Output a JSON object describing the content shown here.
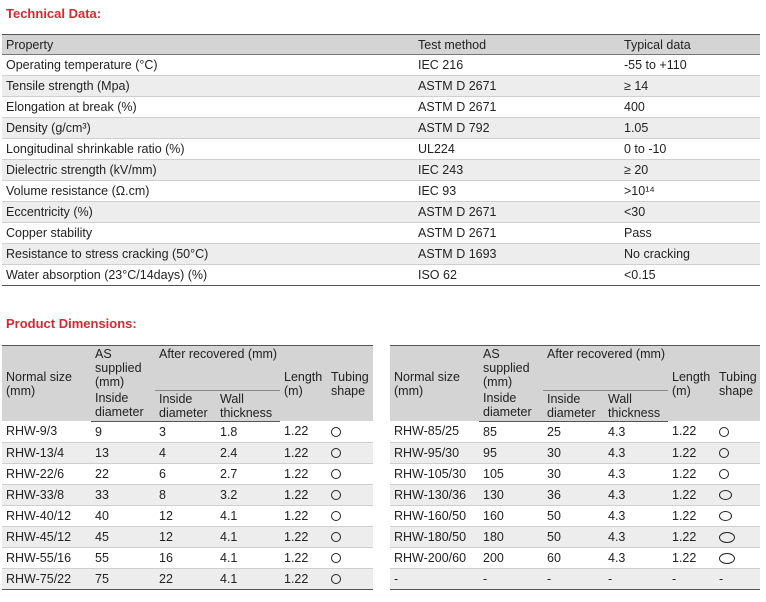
{
  "technical_title": "Technical Data:",
  "technical": {
    "headers": [
      "Property",
      "Test method",
      "Typical data"
    ],
    "rows": [
      [
        "Operating temperature (°C)",
        "IEC 216",
        "-55 to +110"
      ],
      [
        "Tensile strength (Mpa)",
        "ASTM D 2671",
        "≥ 14"
      ],
      [
        "Elongation at break (%)",
        "ASTM D 2671",
        "400"
      ],
      [
        "Density (g/cm³)",
        "ASTM D 792",
        "1.05"
      ],
      [
        "Longitudinal shrinkable ratio (%)",
        "UL224",
        "0 to -10"
      ],
      [
        "Dielectric strength (kV/mm)",
        "IEC 243",
        "≥ 20"
      ],
      [
        "Volume resistance (Ω.cm)",
        "IEC 93",
        ">10¹⁴"
      ],
      [
        "Eccentricity (%)",
        "ASTM D 2671",
        "<30"
      ],
      [
        "Copper stability",
        "ASTM D 2671",
        "Pass"
      ],
      [
        "Resistance to stress cracking (50°C)",
        "ASTM D 1693",
        "No cracking"
      ],
      [
        "Water absorption (23°C/14days) (%)",
        "ISO 62",
        "<0.15"
      ]
    ]
  },
  "dimensions_title": "Product Dimensions:",
  "dim_headers": {
    "normal_size": "Normal size (mm)",
    "as_supplied": "AS supplied (mm)",
    "after_recovered": "After recovered (mm)",
    "inside_diameter": "Inside diameter",
    "wall_thickness": "Wall thickness",
    "length": "Length (m)",
    "tubing_shape": "Tubing shape"
  },
  "dimensions_left": [
    {
      "size": "RHW-9/3",
      "as": "9",
      "inside": "3",
      "wall": "1.8",
      "length": "1.22",
      "shape": "small-circle-icon"
    },
    {
      "size": "RHW-13/4",
      "as": "13",
      "inside": "4",
      "wall": "2.4",
      "length": "1.22",
      "shape": "small-circle-icon"
    },
    {
      "size": "RHW-22/6",
      "as": "22",
      "inside": "6",
      "wall": "2.7",
      "length": "1.22",
      "shape": "small-circle-icon"
    },
    {
      "size": "RHW-33/8",
      "as": "33",
      "inside": "8",
      "wall": "3.2",
      "length": "1.22",
      "shape": "small-circle-icon"
    },
    {
      "size": "RHW-40/12",
      "as": "40",
      "inside": "12",
      "wall": "4.1",
      "length": "1.22",
      "shape": "small-circle-icon"
    },
    {
      "size": "RHW-45/12",
      "as": "45",
      "inside": "12",
      "wall": "4.1",
      "length": "1.22",
      "shape": "small-circle-icon"
    },
    {
      "size": "RHW-55/16",
      "as": "55",
      "inside": "16",
      "wall": "4.1",
      "length": "1.22",
      "shape": "small-circle-icon"
    },
    {
      "size": "RHW-75/22",
      "as": "75",
      "inside": "22",
      "wall": "4.1",
      "length": "1.22",
      "shape": "small-circle-icon"
    }
  ],
  "dimensions_right": [
    {
      "size": "RHW-85/25",
      "as": "85",
      "inside": "25",
      "wall": "4.3",
      "length": "1.22",
      "shape": "small-circle-icon"
    },
    {
      "size": "RHW-95/30",
      "as": "95",
      "inside": "30",
      "wall": "4.3",
      "length": "1.22",
      "shape": "small-circle-icon"
    },
    {
      "size": "RHW-105/30",
      "as": "105",
      "inside": "30",
      "wall": "4.3",
      "length": "1.22",
      "shape": "small-circle-icon"
    },
    {
      "size": "RHW-130/36",
      "as": "130",
      "inside": "36",
      "wall": "4.3",
      "length": "1.22",
      "shape": "oval-icon"
    },
    {
      "size": "RHW-160/50",
      "as": "160",
      "inside": "50",
      "wall": "4.3",
      "length": "1.22",
      "shape": "oval-icon"
    },
    {
      "size": "RHW-180/50",
      "as": "180",
      "inside": "50",
      "wall": "4.3",
      "length": "1.22",
      "shape": "wide-oval-icon"
    },
    {
      "size": "RHW-200/60",
      "as": "200",
      "inside": "60",
      "wall": "4.3",
      "length": "1.22",
      "shape": "wide-oval-icon"
    },
    {
      "size": "-",
      "as": "-",
      "inside": "-",
      "wall": "-",
      "length": "-",
      "shape": "-"
    }
  ]
}
